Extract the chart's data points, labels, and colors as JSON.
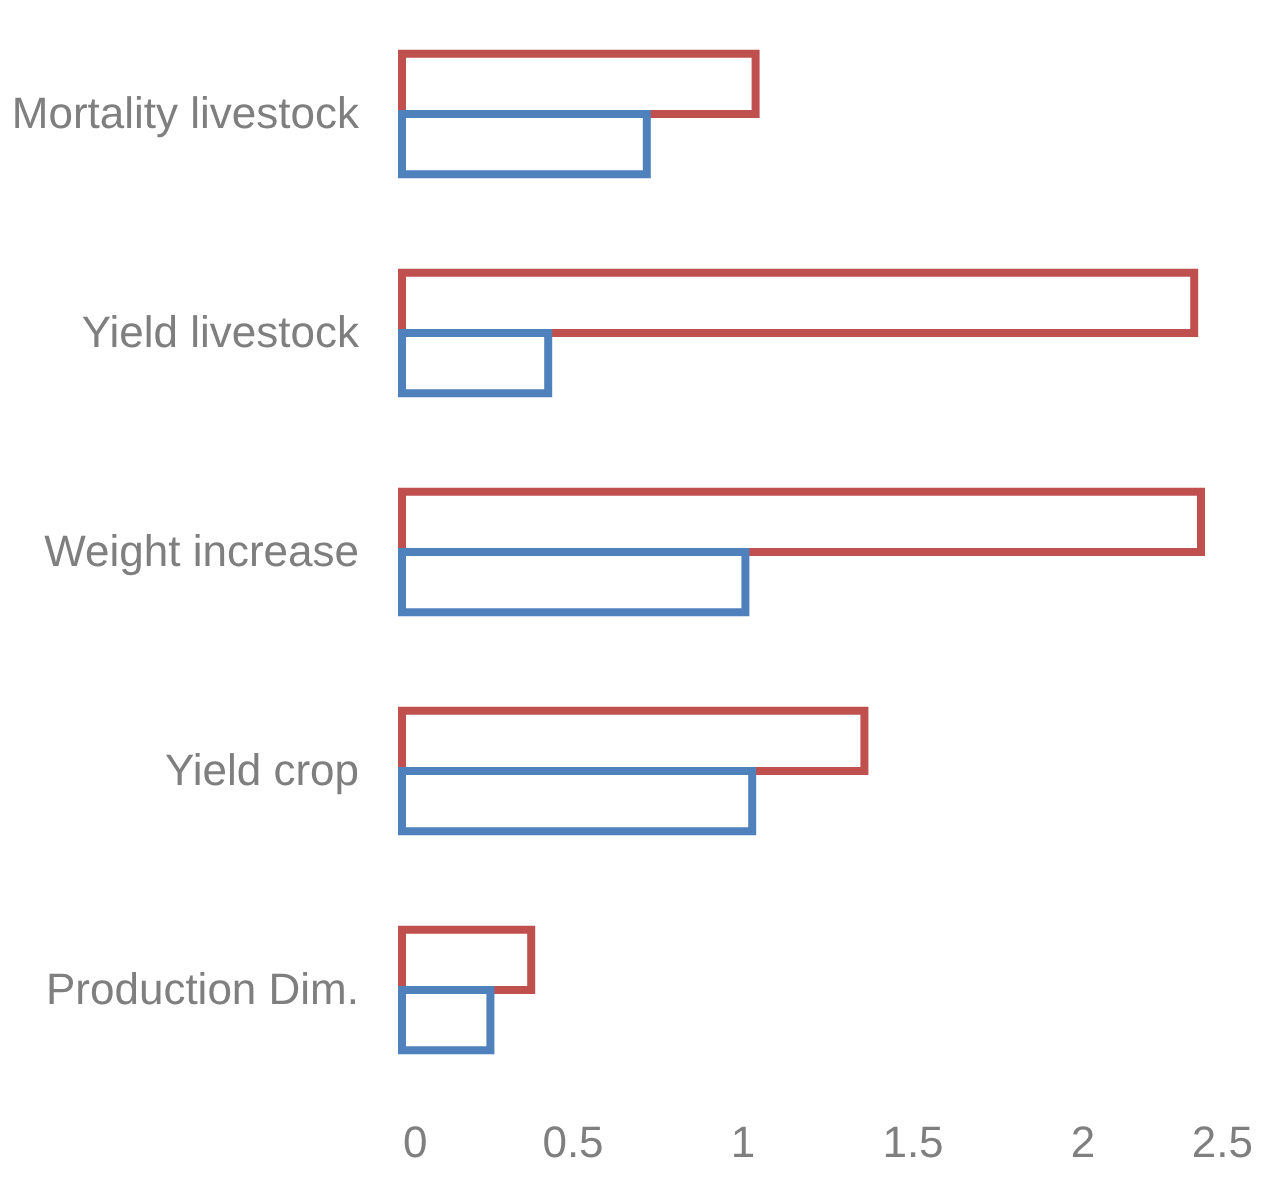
{
  "chart_data": {
    "type": "bar",
    "orientation": "horizontal",
    "categories": [
      "Mortality livestock",
      "Yield livestock",
      "Weight increase",
      "Yield crop",
      "Production Dim."
    ],
    "series": [
      {
        "color": "#c0504d",
        "values": [
          1.04,
          2.33,
          2.35,
          1.36,
          0.38
        ]
      },
      {
        "color": "#4f81bd",
        "values": [
          0.72,
          0.43,
          1.01,
          1.03,
          0.26
        ]
      }
    ],
    "xlim": [
      0,
      2.5
    ],
    "xticks": [
      0,
      0.5,
      1,
      1.5,
      2,
      2.5
    ],
    "grid": false
  }
}
